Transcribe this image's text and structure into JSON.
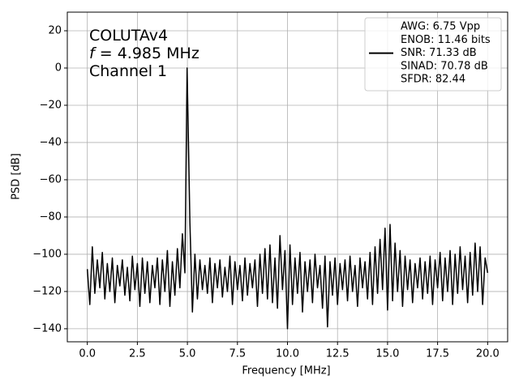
{
  "chart_data": {
    "type": "line",
    "xlabel": "Frequency [MHz]",
    "ylabel": "PSD [dB]",
    "annotation": {
      "line1": "COLUTAv4",
      "line2_var": "f",
      "line2": " = 4.985 MHz",
      "line3": "Channel 1"
    },
    "legend": [
      "AWG: 6.75 Vpp",
      "ENOB: 11.46 bits",
      "SNR: 71.33 dB",
      "SINAD: 70.78 dB",
      "SFDR: 82.44"
    ],
    "legend_loc": "upper right",
    "grid": true,
    "xlim": [
      -1.0,
      21.0
    ],
    "ylim": [
      -147,
      30
    ],
    "xticks": [
      {
        "value": 0,
        "label": "0.0"
      },
      2.5,
      {
        "value": 5,
        "label": "5.0"
      },
      7.5,
      {
        "value": 10,
        "label": "10.0"
      },
      12.5,
      {
        "value": 15,
        "label": "15.0"
      },
      17.5,
      {
        "value": 20,
        "label": "20.0"
      }
    ],
    "yticks": [
      20,
      0,
      {
        "value": -20,
        "label": "−20"
      },
      {
        "value": -40,
        "label": "−40"
      },
      {
        "value": -60,
        "label": "−60"
      },
      {
        "value": -80,
        "label": "−80"
      },
      {
        "value": -100,
        "label": "−100"
      },
      {
        "value": -120,
        "label": "−120"
      },
      {
        "value": -140,
        "label": "−140"
      }
    ],
    "x": [
      0,
      0.125,
      0.25,
      0.375,
      0.5,
      0.625,
      0.75,
      0.875,
      1,
      1.125,
      1.25,
      1.375,
      1.5,
      1.625,
      1.75,
      1.875,
      2,
      2.125,
      2.25,
      2.375,
      2.5,
      2.625,
      2.75,
      2.875,
      3,
      3.125,
      3.25,
      3.375,
      3.5,
      3.625,
      3.75,
      3.875,
      4,
      4.125,
      4.25,
      4.375,
      4.5,
      4.625,
      4.75,
      4.875,
      4.985,
      5.125,
      5.25,
      5.375,
      5.5,
      5.625,
      5.75,
      5.875,
      6,
      6.125,
      6.25,
      6.375,
      6.5,
      6.625,
      6.75,
      6.875,
      7,
      7.125,
      7.25,
      7.375,
      7.5,
      7.625,
      7.75,
      7.875,
      8,
      8.125,
      8.25,
      8.375,
      8.5,
      8.625,
      8.75,
      8.875,
      9,
      9.125,
      9.25,
      9.375,
      9.5,
      9.625,
      9.75,
      9.875,
      10,
      10.125,
      10.25,
      10.375,
      10.5,
      10.625,
      10.75,
      10.875,
      11,
      11.125,
      11.25,
      11.375,
      11.5,
      11.625,
      11.75,
      11.875,
      12,
      12.125,
      12.25,
      12.375,
      12.5,
      12.625,
      12.75,
      12.875,
      13,
      13.125,
      13.25,
      13.375,
      13.5,
      13.625,
      13.75,
      13.875,
      14,
      14.125,
      14.25,
      14.375,
      14.5,
      14.625,
      14.75,
      14.875,
      15,
      15.125,
      15.25,
      15.375,
      15.5,
      15.625,
      15.75,
      15.875,
      16,
      16.125,
      16.25,
      16.375,
      16.5,
      16.625,
      16.75,
      16.875,
      17,
      17.125,
      17.25,
      17.375,
      17.5,
      17.625,
      17.75,
      17.875,
      18,
      18.125,
      18.25,
      18.375,
      18.5,
      18.625,
      18.75,
      18.875,
      19,
      19.125,
      19.25,
      19.375,
      19.5,
      19.625,
      19.75,
      19.875,
      20
    ],
    "series": [
      {
        "color": "#000000",
        "values": [
          -108,
          -127,
          -96,
          -121,
          -103,
          -118,
          -99,
          -124,
          -105,
          -120,
          -102,
          -126,
          -106,
          -117,
          -103,
          -122,
          -107,
          -125,
          -101,
          -119,
          -105,
          -128,
          -102,
          -121,
          -104,
          -126,
          -106,
          -118,
          -102,
          -127,
          -103,
          -120,
          -98,
          -128,
          -104,
          -122,
          -97,
          -118,
          -89,
          -110,
          0,
          -83,
          -131,
          -100,
          -124,
          -103,
          -119,
          -106,
          -121,
          -102,
          -126,
          -105,
          -118,
          -103,
          -123,
          -107,
          -120,
          -101,
          -127,
          -104,
          -119,
          -106,
          -125,
          -102,
          -122,
          -105,
          -118,
          -103,
          -128,
          -100,
          -121,
          -97,
          -124,
          -95,
          -126,
          -102,
          -129,
          -90,
          -119,
          -98,
          -140,
          -95,
          -127,
          -102,
          -121,
          -99,
          -131,
          -104,
          -120,
          -103,
          -126,
          -100,
          -118,
          -106,
          -129,
          -101,
          -139,
          -104,
          -122,
          -102,
          -127,
          -105,
          -119,
          -103,
          -125,
          -101,
          -120,
          -106,
          -128,
          -102,
          -118,
          -104,
          -124,
          -99,
          -127,
          -96,
          -121,
          -92,
          -119,
          -86,
          -130,
          -84,
          -125,
          -94,
          -120,
          -98,
          -128,
          -101,
          -119,
          -103,
          -126,
          -105,
          -118,
          -102,
          -124,
          -104,
          -121,
          -101,
          -127,
          -103,
          -118,
          -99,
          -125,
          -102,
          -120,
          -98,
          -127,
          -100,
          -121,
          -96,
          -119,
          -101,
          -126,
          -99,
          -122,
          -94,
          -120,
          -96,
          -127,
          -102,
          -110
        ]
      }
    ]
  }
}
